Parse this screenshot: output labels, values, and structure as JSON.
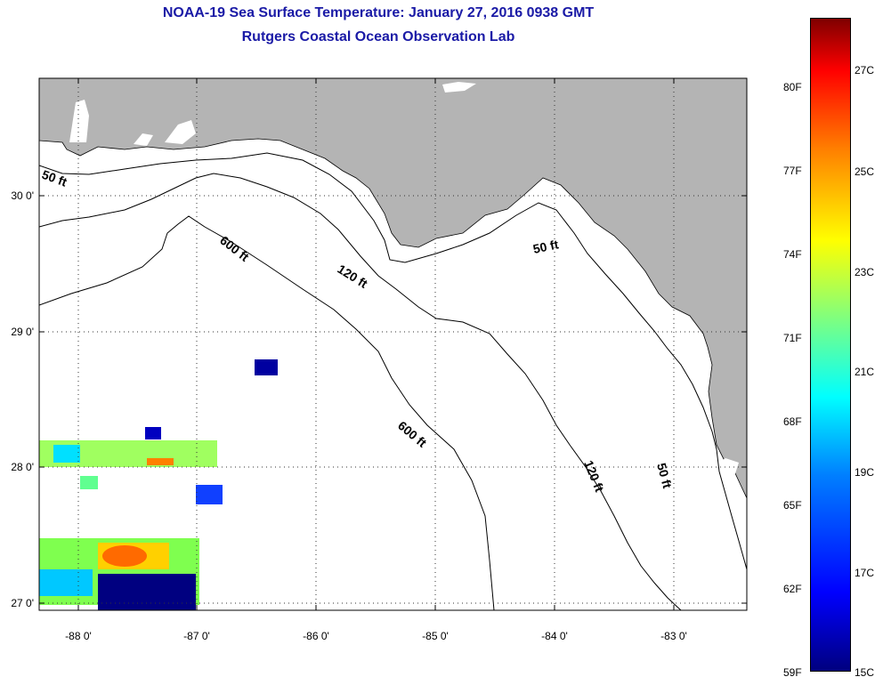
{
  "title_line1": "NOAA-19 Sea Surface Temperature:  January 27, 2016 0938 GMT",
  "title_line2": "Rutgers Coastal Ocean Observation Lab",
  "map": {
    "lon_ticks": [
      "-88 0'",
      "-87 0'",
      "-86 0'",
      "-85 0'",
      "-84 0'",
      "-83 0'"
    ],
    "lat_ticks": [
      "30 0'",
      "29 0'",
      "28 0'",
      "27 0'"
    ],
    "lon_range": [
      -88.35,
      -82.45
    ],
    "lat_range": [
      26.95,
      30.85
    ],
    "grid": "dotted",
    "land_color": "#b4b4b4",
    "ocean_color": "#ffffff",
    "contour_labels": [
      "50 ft",
      "600 ft",
      "120 ft",
      "50 ft",
      "600 ft",
      "120 ft",
      "50 ft"
    ]
  },
  "colorbar": {
    "fahrenheit_labels": [
      "80F",
      "77F",
      "74F",
      "71F",
      "68F",
      "65F",
      "62F",
      "59F"
    ],
    "celsius_labels": [
      "27C",
      "25C",
      "23C",
      "21C",
      "19C",
      "17C",
      "15C"
    ],
    "range_c": [
      15,
      28
    ],
    "colormap": "jet"
  }
}
